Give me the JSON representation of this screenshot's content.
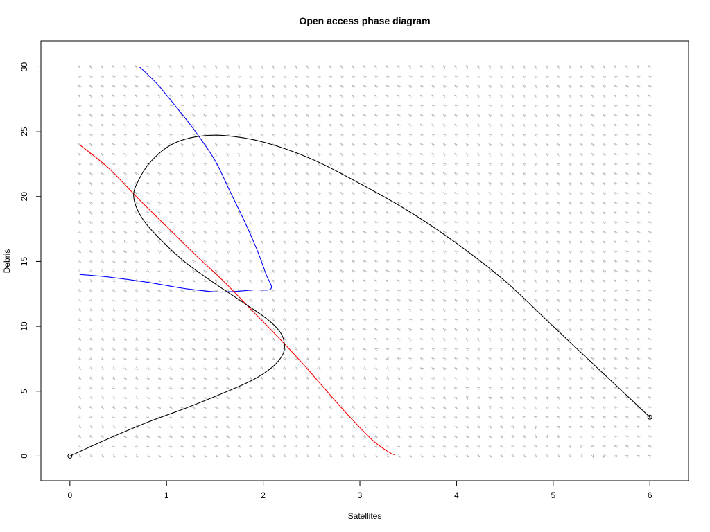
{
  "chart_data": {
    "type": "line",
    "title": "Open access phase diagram",
    "xlabel": "Satellites",
    "ylabel": "Debris",
    "xlim": [
      -0.3,
      6.4
    ],
    "ylim": [
      -1.9,
      32.0
    ],
    "x_ticks": [
      0,
      1,
      2,
      3,
      4,
      5,
      6
    ],
    "y_ticks": [
      0,
      5,
      10,
      15,
      20,
      25,
      30
    ],
    "grid": false,
    "legend": "none",
    "vector_field": {
      "x_range": [
        0.1,
        6.0
      ],
      "x_step": 0.118,
      "y_range": [
        0,
        30
      ],
      "y_step": 0.75,
      "color": "#b3b3b3"
    },
    "series": [
      {
        "color": "#0000ff",
        "points": [
          [
            0.72,
            30.0
          ],
          [
            0.9,
            28.7
          ],
          [
            1.1,
            26.9
          ],
          [
            1.3,
            25.0
          ],
          [
            1.5,
            22.8
          ],
          [
            1.65,
            20.5
          ],
          [
            1.8,
            18.2
          ],
          [
            1.93,
            16.0
          ],
          [
            2.03,
            14.0
          ],
          [
            2.08,
            12.9
          ],
          [
            1.9,
            12.8
          ],
          [
            1.55,
            12.65
          ],
          [
            1.2,
            12.9
          ],
          [
            0.8,
            13.4
          ],
          [
            0.4,
            13.8
          ],
          [
            0.1,
            14.0
          ]
        ]
      },
      {
        "color": "#ff0000",
        "points": [
          [
            0.1,
            24.0
          ],
          [
            0.4,
            22.2
          ],
          [
            0.7,
            19.9
          ],
          [
            1.0,
            17.7
          ],
          [
            1.3,
            15.5
          ],
          [
            1.6,
            13.4
          ],
          [
            1.9,
            11.1
          ],
          [
            2.15,
            9.2
          ],
          [
            2.4,
            7.2
          ],
          [
            2.6,
            5.5
          ],
          [
            2.8,
            3.8
          ],
          [
            3.0,
            2.2
          ],
          [
            3.15,
            1.1
          ],
          [
            3.3,
            0.3
          ],
          [
            3.36,
            0.1
          ]
        ]
      },
      {
        "color": "#000000",
        "points": [
          [
            0.0,
            0.0
          ],
          [
            0.4,
            1.35
          ],
          [
            0.8,
            2.6
          ],
          [
            1.2,
            3.7
          ],
          [
            1.6,
            4.9
          ],
          [
            1.9,
            5.9
          ],
          [
            2.1,
            6.9
          ],
          [
            2.2,
            7.8
          ],
          [
            2.22,
            8.6
          ],
          [
            2.18,
            9.5
          ],
          [
            2.05,
            10.5
          ],
          [
            1.8,
            11.8
          ],
          [
            1.5,
            13.3
          ],
          [
            1.2,
            14.9
          ],
          [
            0.95,
            16.6
          ],
          [
            0.75,
            18.3
          ],
          [
            0.66,
            20.0
          ],
          [
            0.72,
            21.4
          ],
          [
            0.85,
            22.8
          ],
          [
            1.05,
            24.0
          ],
          [
            1.3,
            24.6
          ],
          [
            1.6,
            24.7
          ],
          [
            2.0,
            24.2
          ],
          [
            2.5,
            22.9
          ],
          [
            3.0,
            21.0
          ],
          [
            3.5,
            18.9
          ],
          [
            4.0,
            16.4
          ],
          [
            4.5,
            13.5
          ],
          [
            5.0,
            10.0
          ],
          [
            5.5,
            6.5
          ],
          [
            6.0,
            3.0
          ]
        ]
      }
    ],
    "markers": [
      {
        "x": 0.0,
        "y": 0.0
      },
      {
        "x": 6.0,
        "y": 3.0
      }
    ]
  }
}
